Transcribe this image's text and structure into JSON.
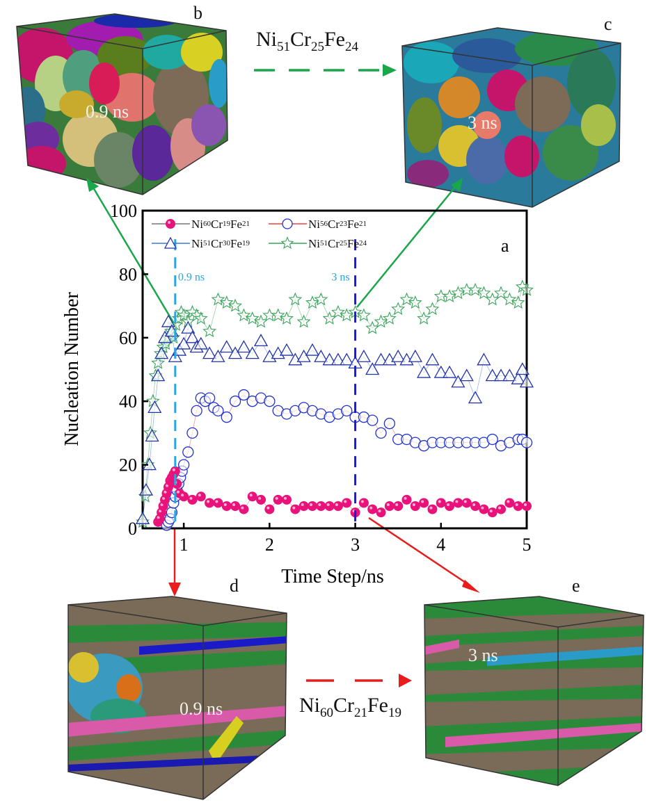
{
  "figure": {
    "panels": {
      "a": "a",
      "b": {
        "letter": "b",
        "time_label": "0.9 ns"
      },
      "c": {
        "letter": "c",
        "time_label": "3 ns"
      },
      "d": {
        "letter": "d",
        "time_label": "0.9 ns"
      },
      "e": {
        "letter": "e",
        "time_label": "3 ns"
      }
    },
    "top_arrow_formula": {
      "el1": "Ni",
      "n1": "51",
      "el2": "Cr",
      "n2": "25",
      "el3": "Fe",
      "n3": "24"
    },
    "bottom_arrow_formula": {
      "el1": "Ni",
      "n1": "60",
      "el2": "Cr",
      "n2": "21",
      "el3": "Fe",
      "n3": "19"
    },
    "colors": {
      "green_arrow": "#1aa64a",
      "red_arrow": "#e81c1c"
    }
  },
  "chart_data": {
    "type": "scatter",
    "title": "",
    "xlabel": "Time Step/ns",
    "ylabel": "Nucleation Number",
    "xlim": [
      0.52,
      5.0
    ],
    "ylim": [
      0,
      100
    ],
    "xticks": [
      "1",
      "2",
      "3",
      "4",
      "5"
    ],
    "yticks": [
      "0",
      "20",
      "40",
      "60",
      "80",
      "100"
    ],
    "grid": false,
    "legend_position": "top-left",
    "annotations": [
      {
        "text": "0.9 ns",
        "x": 0.9,
        "color": "#29a6e0"
      },
      {
        "text": "3 ns",
        "x": 3.0,
        "color": "#1a1adc"
      }
    ],
    "series": [
      {
        "name": "Ni60Cr19Fe21",
        "label": {
          "el1": "Ni",
          "n1": "60",
          "el2": "Cr",
          "n2": "19",
          "el3": "Fe",
          "n3": "21"
        },
        "marker": "filled-circle",
        "color": "#e8127a",
        "line_color": "#777777",
        "x": [
          0.7,
          0.72,
          0.74,
          0.76,
          0.78,
          0.8,
          0.82,
          0.84,
          0.86,
          0.88,
          0.9,
          0.92,
          0.95,
          1.0,
          1.1,
          1.2,
          1.3,
          1.4,
          1.5,
          1.6,
          1.7,
          1.8,
          1.9,
          2.0,
          2.1,
          2.2,
          2.3,
          2.4,
          2.5,
          2.6,
          2.7,
          2.8,
          2.9,
          3.0,
          3.1,
          3.2,
          3.3,
          3.4,
          3.5,
          3.6,
          3.7,
          3.8,
          3.9,
          4.0,
          4.1,
          4.2,
          4.3,
          4.4,
          4.5,
          4.6,
          4.7,
          4.8,
          4.9,
          5.0
        ],
        "y": [
          2,
          3,
          5,
          7,
          9,
          11,
          13,
          15,
          16,
          17,
          18,
          14,
          11,
          10,
          9,
          10,
          8,
          8,
          7,
          7,
          6,
          10,
          9,
          6,
          9,
          9,
          6,
          7,
          7,
          7,
          7,
          7,
          8,
          5,
          8,
          6,
          5,
          7,
          7,
          9,
          7,
          8,
          6,
          8,
          7,
          8,
          8,
          7,
          6,
          5,
          6,
          8,
          7,
          7
        ]
      },
      {
        "name": "Ni56Cr23Fe21",
        "label": {
          "el1": "Ni",
          "n1": "56",
          "el2": "Cr",
          "n2": "23",
          "el3": "Fe",
          "n3": "21"
        },
        "marker": "open-circle",
        "color": "#2233cc",
        "line_color": "#e84040",
        "x": [
          0.8,
          0.82,
          0.84,
          0.86,
          0.88,
          0.9,
          0.92,
          0.94,
          0.96,
          0.98,
          1.0,
          1.05,
          1.1,
          1.15,
          1.2,
          1.25,
          1.3,
          1.35,
          1.4,
          1.5,
          1.6,
          1.7,
          1.8,
          1.9,
          2.0,
          2.1,
          2.2,
          2.3,
          2.4,
          2.5,
          2.6,
          2.7,
          2.8,
          2.9,
          3.0,
          3.1,
          3.2,
          3.3,
          3.4,
          3.5,
          3.6,
          3.7,
          3.8,
          3.9,
          4.0,
          4.1,
          4.2,
          4.3,
          4.4,
          4.5,
          4.6,
          4.7,
          4.8,
          4.9,
          4.95,
          5.0
        ],
        "y": [
          1,
          2,
          3,
          5,
          8,
          10,
          12,
          14,
          16,
          18,
          20,
          24,
          30,
          37,
          41,
          40,
          41,
          38,
          37,
          35,
          40,
          42,
          40,
          41,
          40,
          37,
          36,
          37,
          38,
          37,
          36,
          35,
          36,
          37,
          35,
          35,
          34,
          30,
          33,
          28,
          28,
          27,
          26,
          27,
          27,
          27,
          27,
          27,
          27,
          27,
          28,
          26,
          27,
          28,
          28,
          27
        ]
      },
      {
        "name": "Ni51Cr30Fe19",
        "label": {
          "el1": "Ni",
          "n1": "51",
          "el2": "Cr",
          "n2": "30",
          "el3": "Fe",
          "n3": "19"
        },
        "marker": "open-triangle",
        "color": "#2233aa",
        "line_color": "#3a78d6",
        "x": [
          0.52,
          0.56,
          0.6,
          0.63,
          0.66,
          0.7,
          0.74,
          0.78,
          0.82,
          0.86,
          0.9,
          0.95,
          1.0,
          1.05,
          1.1,
          1.15,
          1.2,
          1.3,
          1.4,
          1.5,
          1.6,
          1.7,
          1.8,
          1.9,
          2.0,
          2.1,
          2.2,
          2.3,
          2.4,
          2.5,
          2.6,
          2.7,
          2.8,
          2.9,
          3.0,
          3.1,
          3.2,
          3.3,
          3.4,
          3.5,
          3.6,
          3.7,
          3.8,
          3.9,
          4.0,
          4.1,
          4.2,
          4.3,
          4.4,
          4.5,
          4.6,
          4.7,
          4.8,
          4.9,
          4.95,
          5.0
        ],
        "y": [
          3,
          12,
          20,
          29,
          38,
          48,
          55,
          60,
          65,
          62,
          54,
          56,
          58,
          63,
          60,
          57,
          58,
          55,
          54,
          57,
          55,
          57,
          55,
          59,
          54,
          55,
          56,
          53,
          54,
          56,
          54,
          53,
          53,
          53,
          52,
          54,
          50,
          53,
          53,
          54,
          53,
          54,
          49,
          53,
          49,
          49,
          46,
          48,
          41,
          53,
          48,
          48,
          48,
          47,
          50,
          46
        ]
      },
      {
        "name": "Ni51Cr25Fe24",
        "label": {
          "el1": "Ni",
          "n1": "51",
          "el2": "Cr",
          "n2": "25",
          "el3": "Fe",
          "n3": "24"
        },
        "marker": "open-star",
        "color": "#3aa35a",
        "line_color": "#3aa35a",
        "x": [
          0.52,
          0.55,
          0.58,
          0.61,
          0.64,
          0.67,
          0.7,
          0.73,
          0.76,
          0.79,
          0.82,
          0.85,
          0.88,
          0.91,
          0.94,
          0.97,
          1.0,
          1.05,
          1.1,
          1.15,
          1.2,
          1.3,
          1.4,
          1.5,
          1.6,
          1.7,
          1.8,
          1.9,
          2.0,
          2.1,
          2.2,
          2.3,
          2.4,
          2.5,
          2.6,
          2.7,
          2.8,
          2.9,
          3.0,
          3.1,
          3.2,
          3.3,
          3.4,
          3.5,
          3.6,
          3.7,
          3.8,
          3.9,
          4.0,
          4.1,
          4.2,
          4.3,
          4.4,
          4.5,
          4.6,
          4.7,
          4.8,
          4.9,
          4.95,
          5.0
        ],
        "y": [
          2,
          10,
          20,
          30,
          40,
          48,
          52,
          55,
          57,
          58,
          60,
          62,
          60,
          64,
          66,
          68,
          67,
          65,
          68,
          67,
          66,
          62,
          72,
          71,
          70,
          67,
          66,
          65,
          67,
          67,
          66,
          72,
          65,
          71,
          72,
          66,
          68,
          67,
          68,
          67,
          63,
          65,
          66,
          69,
          72,
          71,
          66,
          69,
          73,
          73,
          74,
          75,
          75,
          74,
          72,
          74,
          72,
          71,
          76,
          75
        ]
      }
    ]
  }
}
